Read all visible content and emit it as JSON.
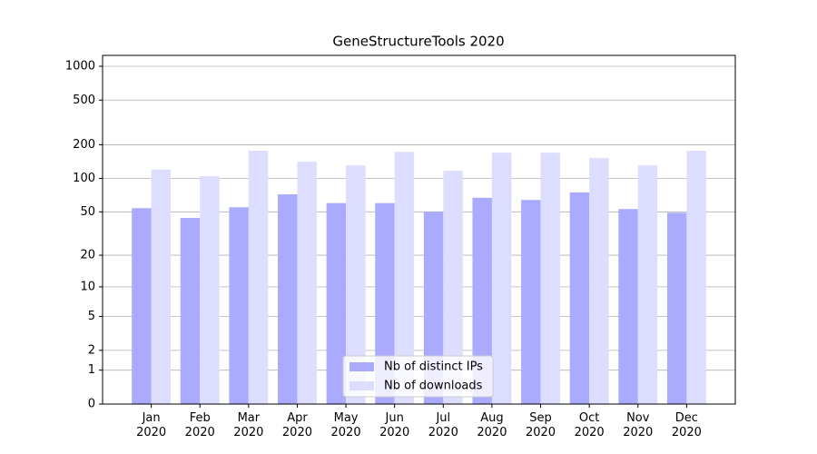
{
  "chart_data": {
    "type": "bar",
    "title": "GeneStructureTools 2020",
    "categories": [
      "Jan\n2020",
      "Feb\n2020",
      "Mar\n2020",
      "Apr\n2020",
      "May\n2020",
      "Jun\n2020",
      "Jul\n2020",
      "Aug\n2020",
      "Sep\n2020",
      "Oct\n2020",
      "Nov\n2020",
      "Dec\n2020"
    ],
    "series": [
      {
        "name": "Nb of distinct IPs",
        "color": "#aaaaff",
        "values": [
          54,
          44,
          55,
          72,
          60,
          60,
          50,
          67,
          64,
          75,
          53,
          49
        ]
      },
      {
        "name": "Nb of downloads",
        "color": "#ddddff",
        "values": [
          120,
          105,
          177,
          141,
          131,
          173,
          117,
          170,
          170,
          152,
          131,
          177
        ]
      }
    ],
    "yscale": "symlog",
    "ylim": [
      0,
      1250
    ],
    "yticks": [
      0,
      1,
      2,
      5,
      10,
      20,
      50,
      100,
      200,
      500,
      1000
    ],
    "grid": true,
    "legend": "lower center"
  }
}
